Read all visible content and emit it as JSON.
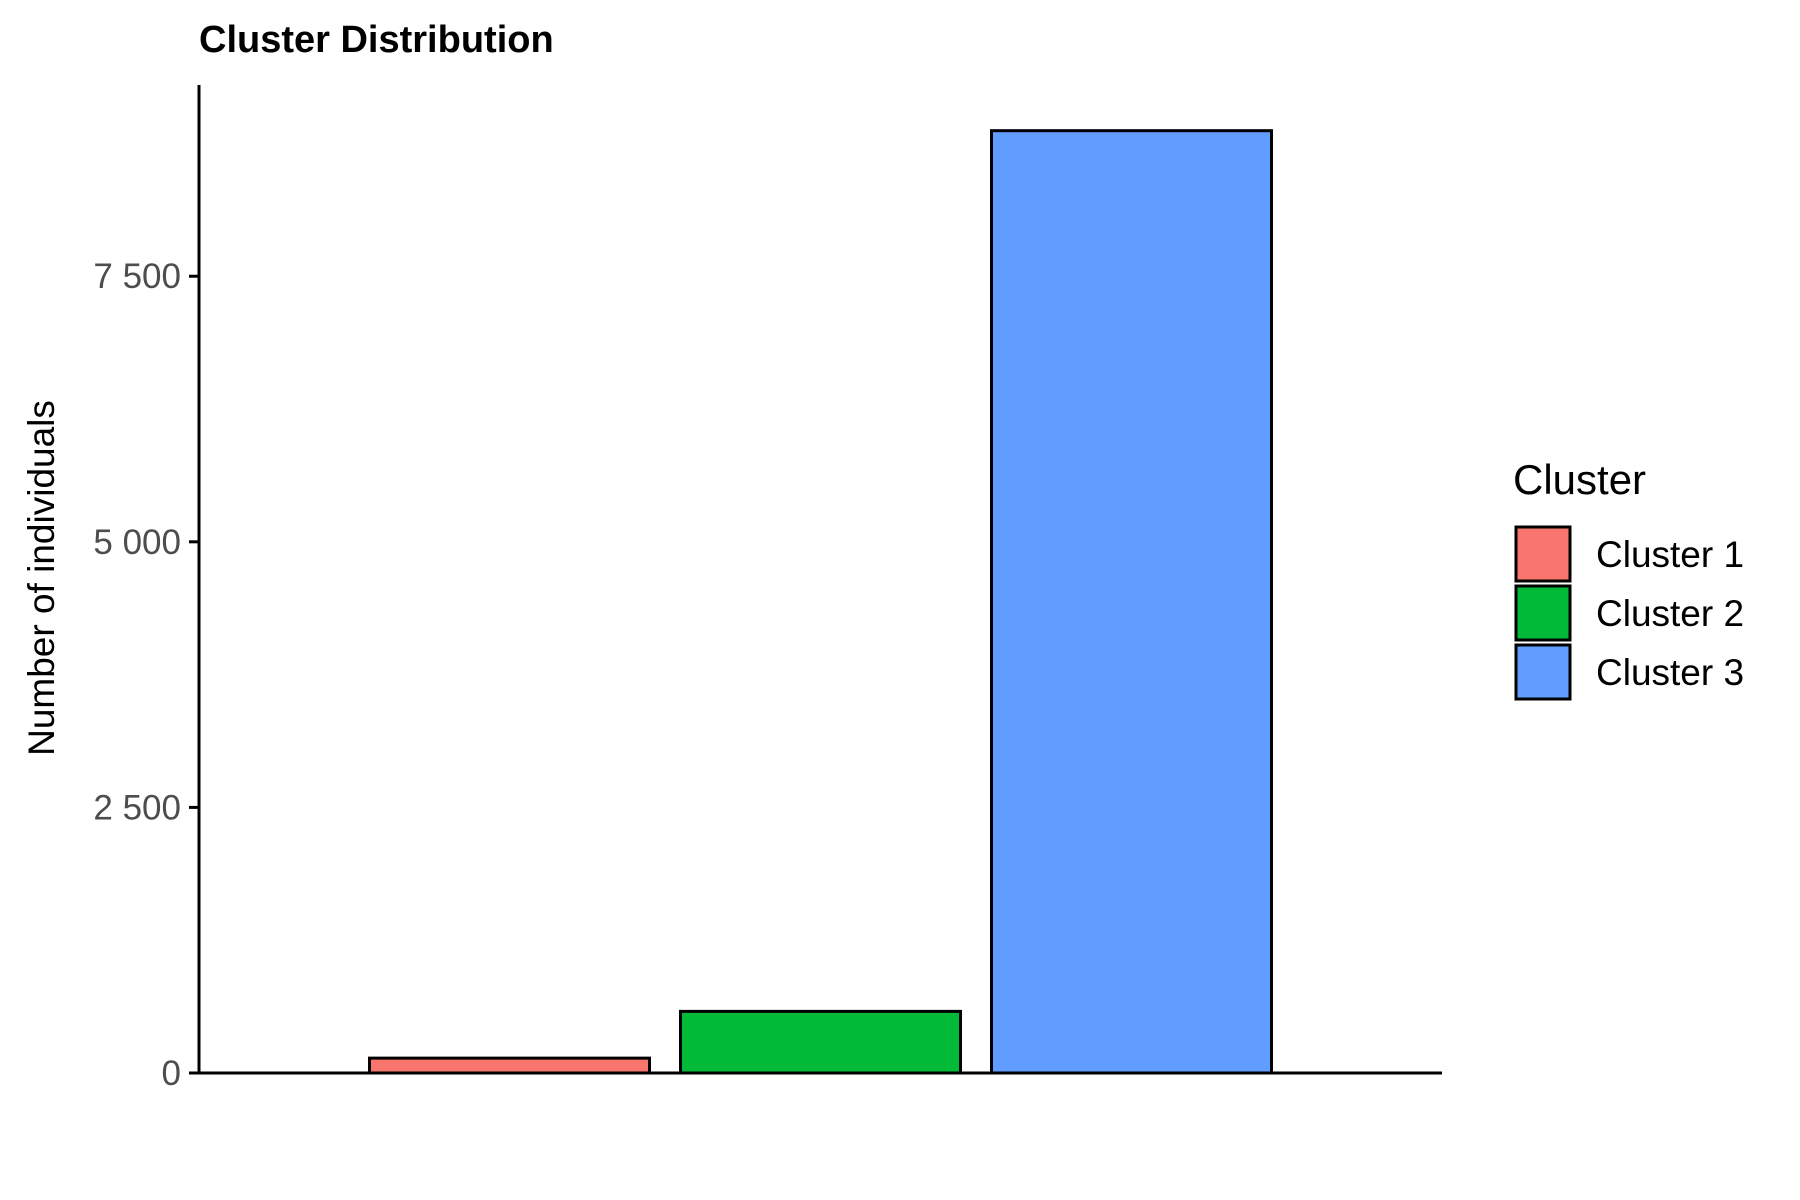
{
  "chart_data": {
    "type": "bar",
    "title": "Cluster Distribution",
    "xlabel": "",
    "ylabel": "Number of individuals",
    "categories": [
      "Cluster 1",
      "Cluster 2",
      "Cluster 3"
    ],
    "values": [
      140,
      580,
      8870
    ],
    "colors": [
      "#F8766D",
      "#00BA38",
      "#619CFF"
    ],
    "ylim": [
      0,
      9300
    ],
    "yticks": [
      0,
      2500,
      5000,
      7500
    ],
    "ytick_labels": [
      "0",
      "2 500",
      "5 000",
      "7 500"
    ],
    "grid": false,
    "legend": {
      "title": "Cluster",
      "placement": "right",
      "entries": [
        "Cluster 1",
        "Cluster 2",
        "Cluster 3"
      ]
    }
  }
}
